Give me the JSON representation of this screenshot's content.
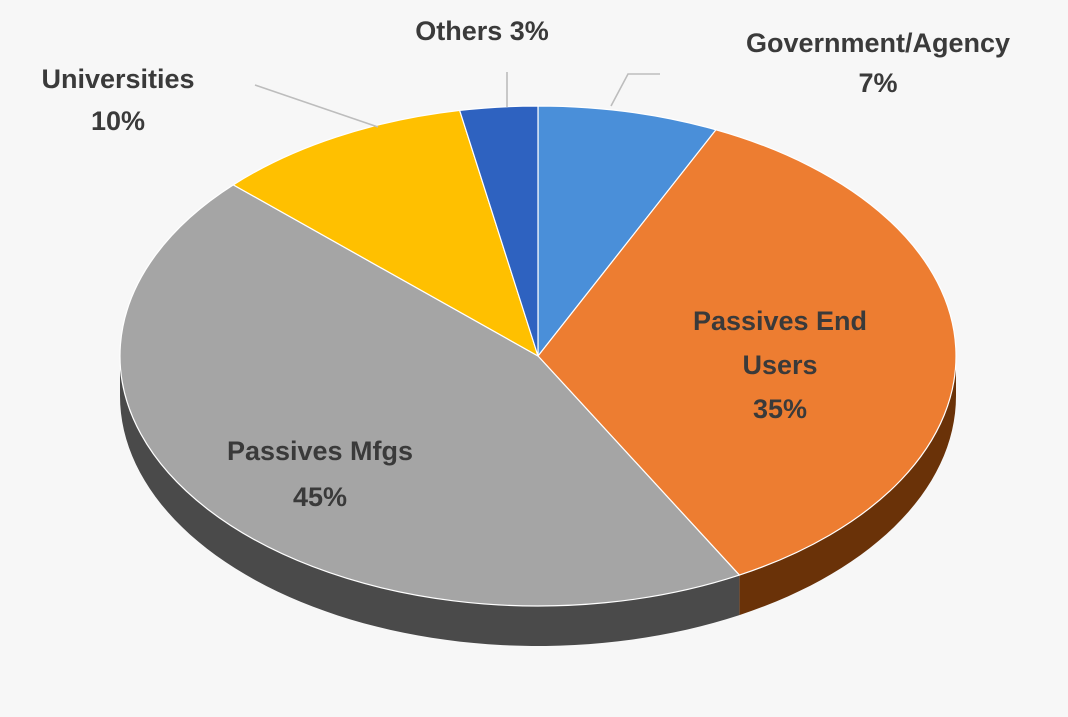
{
  "chart_data": {
    "type": "pie",
    "style": "3d",
    "start_angle_deg": 0,
    "direction": "clockwise",
    "slices": [
      {
        "label": "Government/Agency",
        "value": 7,
        "display": "7%",
        "color": "#4a8fd9"
      },
      {
        "label": "Passives End Users",
        "value": 35,
        "display": "35%",
        "color": "#ed7d31"
      },
      {
        "label": "Passives Mfgs",
        "value": 45,
        "display": "45%",
        "color": "#a5a5a5"
      },
      {
        "label": "Universities",
        "value": 10,
        "display": "10%",
        "color": "#ffc000"
      },
      {
        "label": "Others",
        "value": 3,
        "display": "3%",
        "color": "#2e62c0"
      }
    ],
    "labels": [
      {
        "key": "government",
        "lines": [
          "Government/Agency",
          "7%"
        ]
      },
      {
        "key": "end-users",
        "lines": [
          "Passives End",
          "Users",
          "35%"
        ]
      },
      {
        "key": "mfgs",
        "lines": [
          "Passives Mfgs",
          "45%"
        ]
      },
      {
        "key": "universities",
        "lines": [
          "Universities",
          "10%"
        ]
      },
      {
        "key": "others",
        "lines": [
          "Others 3%"
        ]
      }
    ],
    "side_colors": {
      "Passives End Users": "#6a3208",
      "Passives Mfgs": "#4a4a4a"
    },
    "background": "#f7f7f7"
  }
}
